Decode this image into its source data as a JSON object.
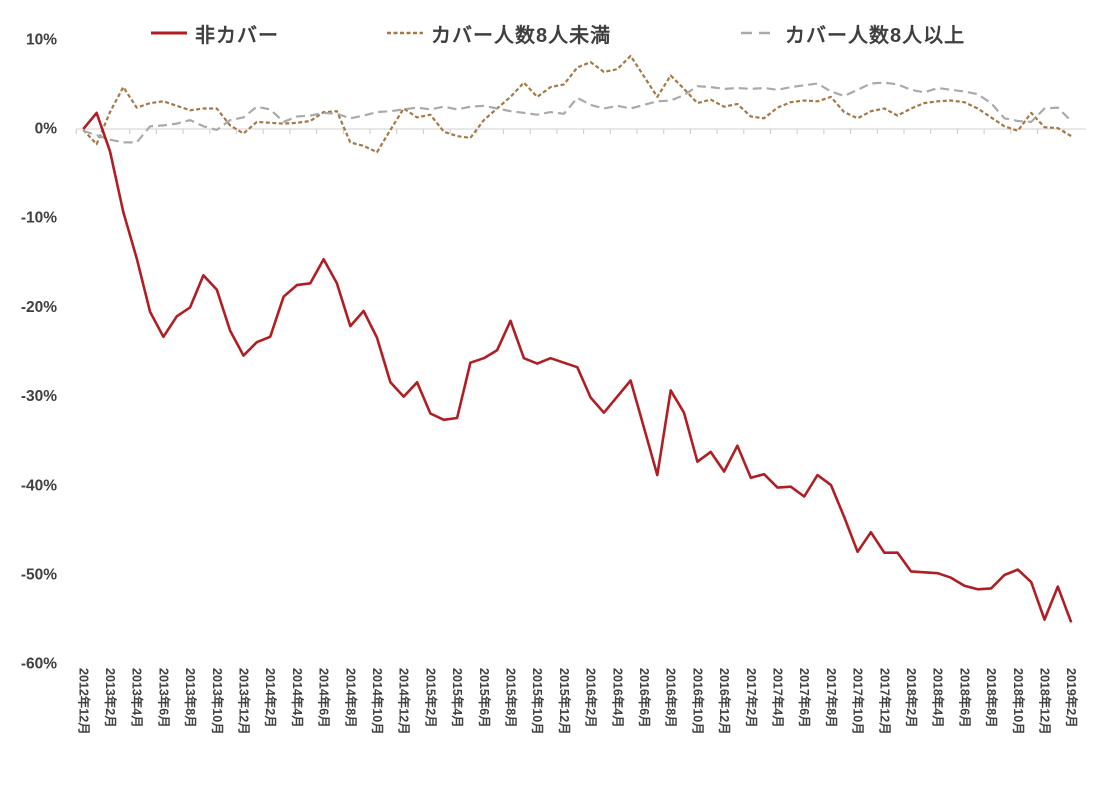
{
  "colors": {
    "background": "#FFFFFF",
    "axis_line": "#D9D9D9",
    "tick_mark": "#D0CECE",
    "label_text": "#404040",
    "series_red": "#B01E23",
    "series_brown": "#A57846",
    "series_gray": "#AAAAAA"
  },
  "legend": [
    {
      "label": "非カバー",
      "color": "#B01E23",
      "style": "solid",
      "swatch_dash": ""
    },
    {
      "label": "カバー人数8人未満",
      "color": "#A57846",
      "style": "short-dash",
      "swatch_dash": "4 2.5"
    },
    {
      "label": "カバー人数8人以上",
      "color": "#AAAAAA",
      "style": "long-dash",
      "swatch_dash": "11 7"
    }
  ],
  "chart_data": {
    "type": "line",
    "title": "",
    "xlabel": "",
    "ylabel": "",
    "ylim": [
      -60,
      10
    ],
    "y_unit": "%",
    "grid": "zero-line-only",
    "legend_position": "top",
    "x_start": "2012年12月",
    "x_end": "2019年2月",
    "x_frequency": "monthly",
    "points_per_tick_label": 2,
    "y_ticks": [
      "10%",
      "0%",
      "-10%",
      "-20%",
      "-30%",
      "-40%",
      "-50%",
      "-60%"
    ],
    "y_tick_values": [
      10,
      0,
      -10,
      -20,
      -30,
      -40,
      -50,
      -60
    ],
    "x_tick_labels": [
      "2012年12月",
      "2013年2月",
      "2013年4月",
      "2013年6月",
      "2013年8月",
      "2013年10月",
      "2013年12月",
      "2014年2月",
      "2014年4月",
      "2014年6月",
      "2014年8月",
      "2014年10月",
      "2014年12月",
      "2015年2月",
      "2015年4月",
      "2015年6月",
      "2015年8月",
      "2015年10月",
      "2015年12月",
      "2016年2月",
      "2016年4月",
      "2016年6月",
      "2016年8月",
      "2016年10月",
      "2016年12月",
      "2017年2月",
      "2017年4月",
      "2017年6月",
      "2017年8月",
      "2017年10月",
      "2017年12月",
      "2018年2月",
      "2018年4月",
      "2018年6月",
      "2018年8月",
      "2018年10月",
      "2018年12月",
      "2019年2月"
    ],
    "series": [
      {
        "name": "非カバー",
        "color": "#B01E23",
        "dash": "",
        "width": 2.6,
        "values": [
          0.0,
          1.8,
          -2.5,
          -9.3,
          -14.5,
          -20.5,
          -23.3,
          -21.0,
          -20.0,
          -16.4,
          -18.0,
          -22.6,
          -25.4,
          -23.9,
          -23.3,
          -18.8,
          -17.5,
          -17.3,
          -14.6,
          -17.3,
          -22.1,
          -20.4,
          -23.4,
          -28.4,
          -30.0,
          -28.4,
          -31.9,
          -32.6,
          -32.4,
          -26.2,
          -25.7,
          -24.8,
          -21.5,
          -25.7,
          -26.3,
          -25.7,
          -26.2,
          -26.7,
          -30.1,
          -31.8,
          -30.0,
          -28.2,
          -33.5,
          -38.8,
          -29.3,
          -31.8,
          -37.3,
          -36.2,
          -38.4,
          -35.5,
          -39.1,
          -38.7,
          -40.2,
          -40.1,
          -41.2,
          -38.8,
          -39.9,
          -43.5,
          -47.4,
          -45.2,
          -47.5,
          -47.5,
          -49.6,
          -49.7,
          -49.8,
          -50.3,
          -51.2,
          -51.6,
          -51.5,
          -50.0,
          -49.4,
          -50.8,
          -55.0,
          -51.3,
          -55.3
        ]
      },
      {
        "name": "カバー人数8人未満",
        "color": "#A57846",
        "dash": "4 2.5",
        "width": 2.2,
        "values": [
          -0.1,
          -1.7,
          1.9,
          4.7,
          2.4,
          2.9,
          3.1,
          2.6,
          2.1,
          2.3,
          2.3,
          0.4,
          -0.5,
          0.8,
          0.7,
          0.6,
          0.7,
          0.9,
          1.9,
          2.0,
          -1.5,
          -1.9,
          -2.6,
          -0.1,
          2.3,
          1.3,
          1.6,
          -0.3,
          -0.8,
          -1.0,
          1.0,
          2.3,
          3.6,
          5.2,
          3.6,
          4.7,
          5.0,
          6.9,
          7.5,
          6.4,
          6.7,
          8.2,
          5.9,
          3.6,
          6.0,
          4.5,
          2.9,
          3.3,
          2.5,
          2.8,
          1.4,
          1.2,
          2.4,
          3.0,
          3.2,
          3.1,
          3.6,
          1.9,
          1.2,
          2.0,
          2.3,
          1.5,
          2.3,
          2.9,
          3.1,
          3.2,
          3.0,
          2.3,
          1.3,
          0.3,
          -0.2,
          1.8,
          0.2,
          0.1,
          -0.8
        ]
      },
      {
        "name": "カバー人数8人以上",
        "color": "#AAAAAA",
        "dash": "9 5",
        "width": 2.2,
        "values": [
          -0.2,
          -0.7,
          -1.2,
          -1.5,
          -1.5,
          0.3,
          0.4,
          0.6,
          1.0,
          0.3,
          -0.1,
          1.0,
          1.3,
          2.5,
          2.2,
          0.8,
          1.4,
          1.5,
          1.8,
          1.7,
          1.2,
          1.5,
          1.9,
          2.0,
          2.2,
          2.4,
          2.2,
          2.5,
          2.2,
          2.5,
          2.6,
          2.3,
          2.0,
          1.8,
          1.6,
          1.9,
          1.7,
          3.5,
          2.7,
          2.3,
          2.6,
          2.3,
          2.7,
          3.1,
          3.2,
          3.8,
          4.8,
          4.7,
          4.5,
          4.6,
          4.5,
          4.6,
          4.4,
          4.7,
          4.9,
          5.1,
          4.2,
          3.7,
          4.4,
          5.1,
          5.2,
          5.0,
          4.4,
          4.1,
          4.6,
          4.4,
          4.2,
          3.9,
          2.9,
          1.2,
          0.9,
          0.8,
          2.3,
          2.4,
          0.9
        ]
      }
    ]
  }
}
